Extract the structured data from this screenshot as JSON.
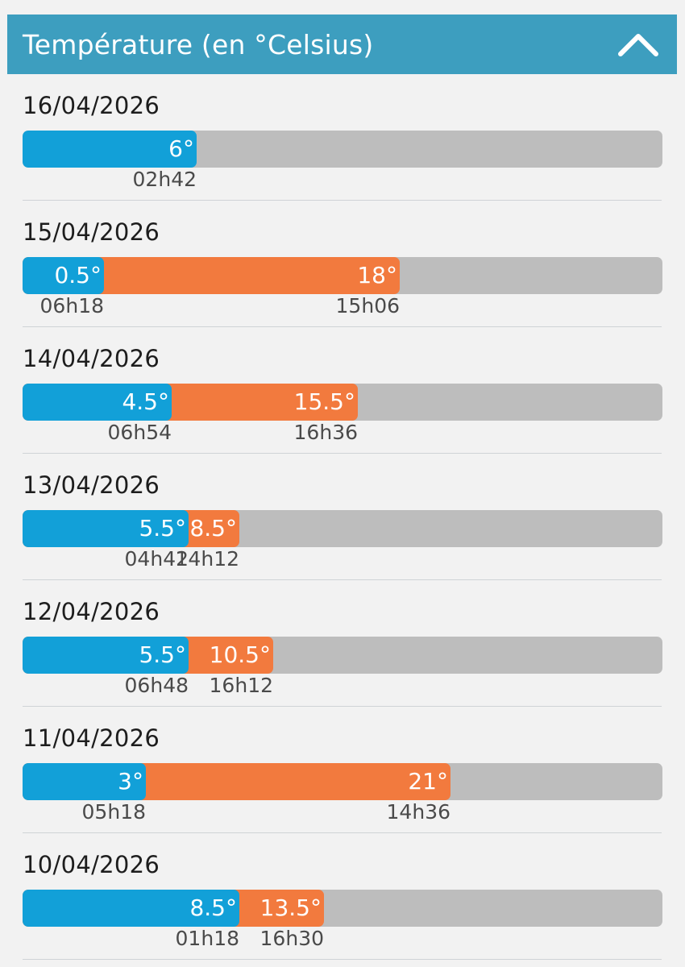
{
  "header": {
    "title": "Température (en °Celsius)",
    "collapse_icon": "chevron-up-icon"
  },
  "scale": {
    "min": -4.3,
    "max": 33.5
  },
  "colors": {
    "header": "#3d9ebf",
    "min_bar": "#12a0d8",
    "max_bar": "#f27a3e",
    "track": "#bdbdbd"
  },
  "days": [
    {
      "date": "16/04/2026",
      "min": 6,
      "min_label": "6°",
      "min_time": "02h42"
    },
    {
      "date": "15/04/2026",
      "min": 0.5,
      "min_label": "0.5°",
      "min_time": "06h18",
      "max": 18,
      "max_label": "18°",
      "max_time": "15h06"
    },
    {
      "date": "14/04/2026",
      "min": 4.5,
      "min_label": "4.5°",
      "min_time": "06h54",
      "max": 15.5,
      "max_label": "15.5°",
      "max_time": "16h36"
    },
    {
      "date": "13/04/2026",
      "min": 5.5,
      "min_label": "5.5°",
      "min_time": "04h42",
      "max": 8.5,
      "max_label": "8.5°",
      "max_time": "14h12"
    },
    {
      "date": "12/04/2026",
      "min": 5.5,
      "min_label": "5.5°",
      "min_time": "06h48",
      "max": 10.5,
      "max_label": "10.5°",
      "max_time": "16h12"
    },
    {
      "date": "11/04/2026",
      "min": 3,
      "min_label": "3°",
      "min_time": "05h18",
      "max": 21,
      "max_label": "21°",
      "max_time": "14h36"
    },
    {
      "date": "10/04/2026",
      "min": 8.5,
      "min_label": "8.5°",
      "min_time": "01h18",
      "max": 13.5,
      "max_label": "13.5°",
      "max_time": "16h30"
    }
  ]
}
